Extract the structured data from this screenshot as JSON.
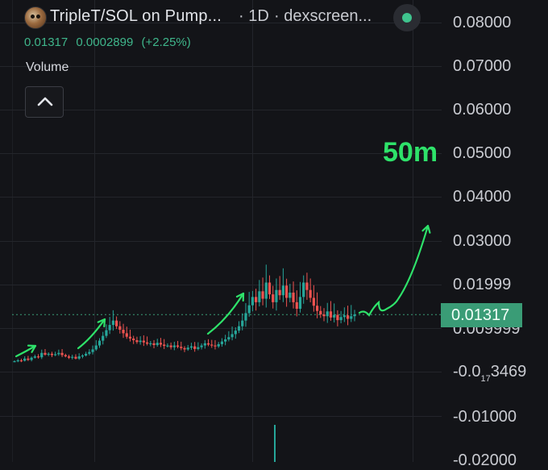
{
  "header": {
    "pair_title": "TripleT/SOL on Pump...",
    "interval": "· 1D",
    "source": "· dexscreen...",
    "price": "0.01317",
    "change_abs": "0.0002899",
    "change_pct": "(+2.25%)",
    "volume_label": "Volume"
  },
  "price_axis": {
    "ticks": [
      "0.08000",
      "0.07000",
      "0.06000",
      "0.05000",
      "0.04000",
      "0.03000",
      "0.01999",
      "0.009999",
      "-0.01000",
      "-0.02000"
    ],
    "tick_special": {
      "prefix": "-0.0",
      "subscript": "17",
      "suffix": "3469"
    },
    "current_price_tag": "0.01317"
  },
  "annotation": {
    "target_label": "50m",
    "arrow_color": "#2ee26a"
  },
  "colors": {
    "up": "#26a69a",
    "down": "#ef5350",
    "background": "#131418",
    "price_tag": "#3a9c76"
  },
  "chart_data": {
    "type": "candlestick",
    "interval": "1D",
    "ylim": [
      -0.02,
      0.08
    ],
    "current_price": 0.01317,
    "close_series": [
      0.0025,
      0.0027,
      0.0026,
      0.0031,
      0.0028,
      0.0033,
      0.0036,
      0.0034,
      0.0044,
      0.004,
      0.0042,
      0.0039,
      0.0041,
      0.0044,
      0.0039,
      0.0036,
      0.0033,
      0.0035,
      0.0031,
      0.0036,
      0.0038,
      0.0042,
      0.0046,
      0.0052,
      0.0061,
      0.0072,
      0.0083,
      0.0096,
      0.0108,
      0.0118,
      0.0105,
      0.0097,
      0.0089,
      0.0081,
      0.0077,
      0.0073,
      0.0069,
      0.0072,
      0.0068,
      0.0065,
      0.0066,
      0.0062,
      0.0067,
      0.0063,
      0.006,
      0.0061,
      0.0057,
      0.0061,
      0.0058,
      0.0055,
      0.0052,
      0.0056,
      0.0059,
      0.0053,
      0.0057,
      0.0061,
      0.0066,
      0.0063,
      0.0061,
      0.0059,
      0.0064,
      0.007,
      0.0075,
      0.008,
      0.0087,
      0.0095,
      0.0105,
      0.0118,
      0.0135,
      0.0153,
      0.0172,
      0.016,
      0.0185,
      0.0168,
      0.0205,
      0.0178,
      0.016,
      0.0188,
      0.0176,
      0.0198,
      0.017,
      0.0182,
      0.016,
      0.0145,
      0.0172,
      0.0205,
      0.0188,
      0.017,
      0.0152,
      0.014,
      0.0132,
      0.0128,
      0.0139,
      0.0125,
      0.0131,
      0.0119,
      0.0126,
      0.013,
      0.0122,
      0.0128,
      0.0132
    ],
    "volume_spike_visible": true
  }
}
